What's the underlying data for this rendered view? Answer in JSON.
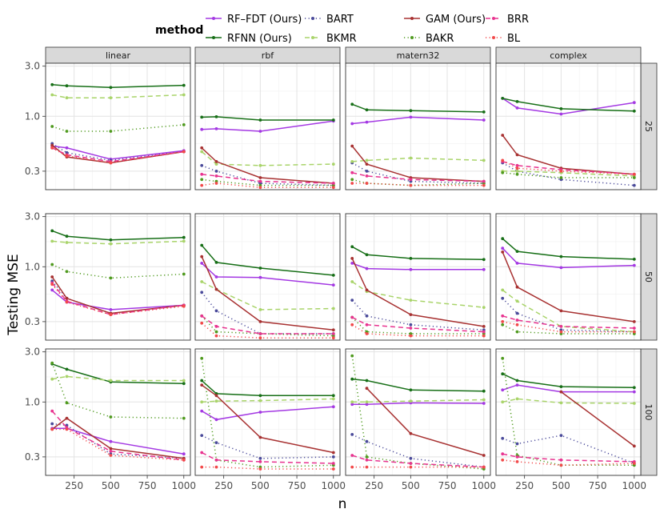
{
  "chart_data": {
    "type": "line",
    "layout": "facet-grid",
    "x": [
      100,
      200,
      500,
      1000
    ],
    "xlabel": "n",
    "ylabel": "Testing MSE",
    "yscale": "log10",
    "ylim": [
      0.2,
      3.2
    ],
    "x_ticks": [
      250,
      500,
      750,
      1000
    ],
    "x_tick_labels": [
      "250",
      "500",
      "750",
      "1000"
    ],
    "y_ticks": [
      0.3,
      1.0,
      3.0
    ],
    "y_tick_labels": [
      "0.3",
      "1.0",
      "3.0"
    ],
    "xlim": [
      55,
      1045
    ],
    "legend_title": "method",
    "legend_position": "top",
    "column_facets": [
      "linear",
      "rbf",
      "matern32",
      "complex"
    ],
    "row_facets": [
      "25",
      "50",
      "100"
    ],
    "methods": [
      {
        "name": "RF–FDT (Ours)",
        "color": "#a439e3",
        "dash": "solid"
      },
      {
        "name": "RFNN (Ours)",
        "color": "#176f17",
        "dash": "solid"
      },
      {
        "name": "BART",
        "color": "#4a4a9a",
        "dash": "dot"
      },
      {
        "name": "BKMR",
        "color": "#a9d46a",
        "dash": "dashed"
      },
      {
        "name": "GAM (Ours)",
        "color": "#a83232",
        "dash": "solid"
      },
      {
        "name": "BAKR",
        "color": "#4f9a1e",
        "dash": "dot"
      },
      {
        "name": "BRR",
        "color": "#e8338f",
        "dash": "dashed"
      },
      {
        "name": "BL",
        "color": "#f2494a",
        "dash": "dot"
      }
    ],
    "panels": [
      {
        "row": "25",
        "col": "linear",
        "series": [
          {
            "name": "RF–FDT (Ours)",
            "values": [
              0.52,
              0.5,
              0.39,
              0.47
            ]
          },
          {
            "name": "RFNN (Ours)",
            "values": [
              2.0,
              1.95,
              1.88,
              1.97
            ]
          },
          {
            "name": "BART",
            "values": [
              0.55,
              0.45,
              0.38,
              0.46
            ]
          },
          {
            "name": "BKMR",
            "values": [
              1.6,
              1.5,
              1.5,
              1.6
            ]
          },
          {
            "name": "GAM (Ours)",
            "values": [
              0.53,
              0.41,
              0.36,
              0.46
            ]
          },
          {
            "name": "BAKR",
            "values": [
              0.8,
              0.72,
              0.72,
              0.83
            ]
          },
          {
            "name": "BRR",
            "values": [
              0.5,
              0.43,
              0.37,
              0.46
            ]
          },
          {
            "name": "BL",
            "values": [
              0.5,
              0.42,
              0.36,
              0.46
            ]
          }
        ]
      },
      {
        "row": "25",
        "col": "rbf",
        "series": [
          {
            "name": "RF–FDT (Ours)",
            "values": [
              0.75,
              0.76,
              0.72,
              0.9
            ]
          },
          {
            "name": "RFNN (Ours)",
            "values": [
              0.98,
              0.99,
              0.92,
              0.92
            ]
          },
          {
            "name": "BART",
            "values": [
              0.34,
              0.3,
              0.23,
              0.22
            ]
          },
          {
            "name": "BKMR",
            "values": [
              0.46,
              0.35,
              0.34,
              0.35
            ]
          },
          {
            "name": "GAM (Ours)",
            "values": [
              0.5,
              0.37,
              0.26,
              0.23
            ]
          },
          {
            "name": "BAKR",
            "values": [
              0.25,
              0.24,
              0.22,
              0.22
            ]
          },
          {
            "name": "BRR",
            "values": [
              0.28,
              0.27,
              0.24,
              0.23
            ]
          },
          {
            "name": "BL",
            "values": [
              0.22,
              0.23,
              0.21,
              0.21
            ]
          }
        ]
      },
      {
        "row": "25",
        "col": "matern32",
        "series": [
          {
            "name": "RF–FDT (Ours)",
            "values": [
              0.85,
              0.88,
              0.98,
              0.92
            ]
          },
          {
            "name": "RFNN (Ours)",
            "values": [
              1.3,
              1.15,
              1.13,
              1.1
            ]
          },
          {
            "name": "BART",
            "values": [
              0.36,
              0.3,
              0.24,
              0.23
            ]
          },
          {
            "name": "BKMR",
            "values": [
              0.37,
              0.38,
              0.4,
              0.38
            ]
          },
          {
            "name": "GAM (Ours)",
            "values": [
              0.52,
              0.35,
              0.26,
              0.24
            ]
          },
          {
            "name": "BAKR",
            "values": [
              0.25,
              0.23,
              0.22,
              0.23
            ]
          },
          {
            "name": "BRR",
            "values": [
              0.29,
              0.27,
              0.25,
              0.24
            ]
          },
          {
            "name": "BL",
            "values": [
              0.23,
              0.23,
              0.22,
              0.22
            ]
          }
        ]
      },
      {
        "row": "25",
        "col": "complex",
        "series": [
          {
            "name": "RF–FDT (Ours)",
            "values": [
              1.48,
              1.2,
              1.05,
              1.35
            ]
          },
          {
            "name": "RFNN (Ours)",
            "values": [
              1.48,
              1.38,
              1.18,
              1.12
            ]
          },
          {
            "name": "BART",
            "values": [
              0.36,
              0.3,
              0.25,
              0.22
            ]
          },
          {
            "name": "BKMR",
            "values": [
              0.3,
              0.3,
              0.29,
              0.27
            ]
          },
          {
            "name": "GAM (Ours)",
            "values": [
              0.66,
              0.43,
              0.32,
              0.28
            ]
          },
          {
            "name": "BAKR",
            "values": [
              0.29,
              0.28,
              0.26,
              0.26
            ]
          },
          {
            "name": "BRR",
            "values": [
              0.37,
              0.34,
              0.31,
              0.28
            ]
          },
          {
            "name": "BL",
            "values": [
              0.38,
              0.32,
              0.3,
              0.28
            ]
          }
        ]
      },
      {
        "row": "50",
        "col": "linear",
        "series": [
          {
            "name": "RF–FDT (Ours)",
            "values": [
              0.6,
              0.46,
              0.39,
              0.43
            ]
          },
          {
            "name": "RFNN (Ours)",
            "values": [
              2.2,
              1.95,
              1.8,
              1.9
            ]
          },
          {
            "name": "BART",
            "values": [
              0.73,
              0.5,
              0.36,
              0.43
            ]
          },
          {
            "name": "BKMR",
            "values": [
              1.75,
              1.7,
              1.65,
              1.75
            ]
          },
          {
            "name": "GAM (Ours)",
            "values": [
              0.8,
              0.5,
              0.36,
              0.43
            ]
          },
          {
            "name": "BAKR",
            "values": [
              1.05,
              0.9,
              0.78,
              0.85
            ]
          },
          {
            "name": "BRR",
            "values": [
              0.7,
              0.47,
              0.35,
              0.43
            ]
          },
          {
            "name": "BL",
            "values": [
              0.68,
              0.46,
              0.35,
              0.42
            ]
          }
        ]
      },
      {
        "row": "50",
        "col": "rbf",
        "series": [
          {
            "name": "RF–FDT (Ours)",
            "values": [
              1.08,
              0.8,
              0.79,
              0.67
            ]
          },
          {
            "name": "RFNN (Ours)",
            "values": [
              1.6,
              1.1,
              0.97,
              0.83
            ]
          },
          {
            "name": "BART",
            "values": [
              0.57,
              0.38,
              0.23,
              0.23
            ]
          },
          {
            "name": "BKMR",
            "values": [
              0.72,
              0.61,
              0.39,
              0.4
            ]
          },
          {
            "name": "GAM (Ours)",
            "values": [
              1.25,
              0.61,
              0.3,
              0.25
            ]
          },
          {
            "name": "BAKR",
            "values": [
              0.34,
              0.24,
              0.23,
              0.22
            ]
          },
          {
            "name": "BRR",
            "values": [
              0.34,
              0.27,
              0.23,
              0.23
            ]
          },
          {
            "name": "BL",
            "values": [
              0.29,
              0.22,
              0.21,
              0.21
            ]
          }
        ]
      },
      {
        "row": "50",
        "col": "matern32",
        "series": [
          {
            "name": "RF–FDT (Ours)",
            "values": [
              1.08,
              0.96,
              0.94,
              0.94
            ]
          },
          {
            "name": "RFNN (Ours)",
            "values": [
              1.55,
              1.3,
              1.2,
              1.17
            ]
          },
          {
            "name": "BART",
            "values": [
              0.48,
              0.34,
              0.28,
              0.25
            ]
          },
          {
            "name": "BKMR",
            "values": [
              0.72,
              0.58,
              0.48,
              0.41
            ]
          },
          {
            "name": "GAM (Ours)",
            "values": [
              1.2,
              0.6,
              0.35,
              0.27
            ]
          },
          {
            "name": "BAKR",
            "values": [
              0.33,
              0.24,
              0.23,
              0.23
            ]
          },
          {
            "name": "BRR",
            "values": [
              0.33,
              0.28,
              0.26,
              0.24
            ]
          },
          {
            "name": "BL",
            "values": [
              0.28,
              0.23,
              0.22,
              0.22
            ]
          }
        ]
      },
      {
        "row": "50",
        "col": "complex",
        "series": [
          {
            "name": "RF–FDT (Ours)",
            "values": [
              1.5,
              1.08,
              0.98,
              1.03
            ]
          },
          {
            "name": "RFNN (Ours)",
            "values": [
              1.85,
              1.4,
              1.25,
              1.18
            ]
          },
          {
            "name": "BART",
            "values": [
              0.5,
              0.36,
              0.25,
              0.24
            ]
          },
          {
            "name": "BKMR",
            "values": [
              0.6,
              0.47,
              0.27,
              0.24
            ]
          },
          {
            "name": "GAM (Ours)",
            "values": [
              1.38,
              0.64,
              0.38,
              0.3
            ]
          },
          {
            "name": "BAKR",
            "values": [
              0.28,
              0.24,
              0.23,
              0.23
            ]
          },
          {
            "name": "BRR",
            "values": [
              0.34,
              0.31,
              0.27,
              0.26
            ]
          },
          {
            "name": "BL",
            "values": [
              0.3,
              0.28,
              0.24,
              0.24
            ]
          }
        ]
      },
      {
        "row": "100",
        "col": "linear",
        "series": [
          {
            "name": "RF–FDT (Ours)",
            "values": [
              0.56,
              0.56,
              0.42,
              0.32
            ]
          },
          {
            "name": "RFNN (Ours)",
            "values": [
              2.3,
              2.05,
              1.55,
              1.5
            ]
          },
          {
            "name": "BART",
            "values": [
              0.62,
              0.6,
              0.32,
              0.29
            ]
          },
          {
            "name": "BKMR",
            "values": [
              1.65,
              1.75,
              1.6,
              1.6
            ]
          },
          {
            "name": "GAM (Ours)",
            "values": [
              0.55,
              0.7,
              0.36,
              0.29
            ]
          },
          {
            "name": "BAKR",
            "values": [
              2.35,
              0.98,
              0.72,
              0.7
            ]
          },
          {
            "name": "BRR",
            "values": [
              0.82,
              0.57,
              0.34,
              0.28
            ]
          },
          {
            "name": "BL",
            "values": [
              0.55,
              0.55,
              0.31,
              0.28
            ]
          }
        ]
      },
      {
        "row": "100",
        "col": "rbf",
        "series": [
          {
            "name": "RF–FDT (Ours)",
            "values": [
              0.82,
              0.68,
              0.8,
              0.9
            ]
          },
          {
            "name": "RFNN (Ours)",
            "values": [
              1.6,
              1.2,
              1.15,
              1.15
            ]
          },
          {
            "name": "BART",
            "values": [
              0.48,
              0.41,
              0.29,
              0.3
            ]
          },
          {
            "name": "BKMR",
            "values": [
              1.0,
              1.02,
              1.03,
              1.07
            ]
          },
          {
            "name": "GAM (Ours)",
            "values": [
              1.45,
              1.15,
              0.46,
              0.33
            ]
          },
          {
            "name": "BAKR",
            "values": [
              2.6,
              0.28,
              0.24,
              0.25
            ]
          },
          {
            "name": "BRR",
            "values": [
              0.33,
              0.28,
              0.27,
              0.26
            ]
          },
          {
            "name": "BL",
            "values": [
              0.24,
              0.24,
              0.23,
              0.23
            ]
          }
        ]
      },
      {
        "row": "100",
        "col": "matern32",
        "series": [
          {
            "name": "RF–FDT (Ours)",
            "values": [
              0.95,
              0.95,
              0.98,
              0.97
            ]
          },
          {
            "name": "RFNN (Ours)",
            "values": [
              1.65,
              1.6,
              1.3,
              1.27
            ]
          },
          {
            "name": "BART",
            "values": [
              0.49,
              0.42,
              0.29,
              0.24
            ]
          },
          {
            "name": "BKMR",
            "values": [
              1.0,
              1.0,
              1.02,
              1.05
            ]
          },
          {
            "name": "GAM (Ours)",
            "values": [
              null,
              1.35,
              0.5,
              0.31
            ]
          },
          {
            "name": "BAKR",
            "values": [
              2.75,
              0.3,
              0.26,
              0.23
            ]
          },
          {
            "name": "BRR",
            "values": [
              0.31,
              0.28,
              0.26,
              0.24
            ]
          },
          {
            "name": "BL",
            "values": [
              0.24,
              0.24,
              0.24,
              0.24
            ]
          }
        ]
      },
      {
        "row": "100",
        "col": "complex",
        "series": [
          {
            "name": "RF–FDT (Ours)",
            "values": [
              1.3,
              1.45,
              1.25,
              1.25
            ]
          },
          {
            "name": "RFNN (Ours)",
            "values": [
              1.85,
              1.6,
              1.4,
              1.37
            ]
          },
          {
            "name": "BART",
            "values": [
              0.45,
              0.4,
              0.48,
              0.26
            ]
          },
          {
            "name": "BKMR",
            "values": [
              1.0,
              1.07,
              0.98,
              0.97
            ]
          },
          {
            "name": "GAM (Ours)",
            "values": [
              null,
              null,
              1.25,
              0.38
            ]
          },
          {
            "name": "BAKR",
            "values": [
              2.6,
              0.31,
              0.25,
              0.25
            ]
          },
          {
            "name": "BRR",
            "values": [
              0.32,
              0.3,
              0.28,
              0.27
            ]
          },
          {
            "name": "BL",
            "values": [
              0.28,
              0.27,
              0.25,
              0.26
            ]
          }
        ]
      }
    ]
  }
}
